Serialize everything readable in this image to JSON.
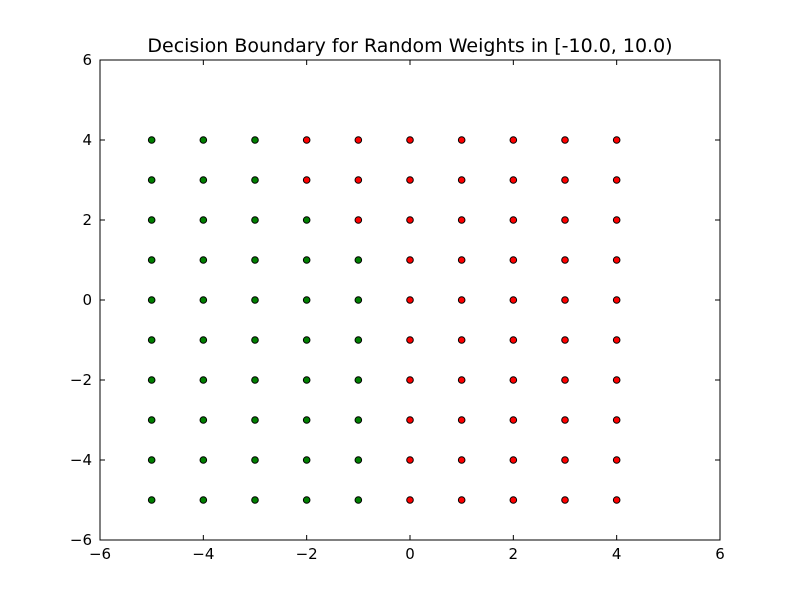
{
  "chart_data": {
    "type": "scatter",
    "title": "Decision Boundary for Random Weights in [-10.0, 10.0)",
    "xlabel": "",
    "ylabel": "",
    "xlim": [
      -6,
      6
    ],
    "ylim": [
      -6,
      6
    ],
    "x_ticks": [
      "−6",
      "−4",
      "−2",
      "0",
      "2",
      "4",
      "6"
    ],
    "y_ticks": [
      "−6",
      "−4",
      "−2",
      "0",
      "2",
      "4",
      "6"
    ],
    "grid": false,
    "legend": "none",
    "series": [
      {
        "color": "#008000",
        "points": [
          [
            -5,
            4
          ],
          [
            -4,
            4
          ],
          [
            -3,
            4
          ],
          [
            -5,
            3
          ],
          [
            -4,
            3
          ],
          [
            -3,
            3
          ],
          [
            -5,
            2
          ],
          [
            -4,
            2
          ],
          [
            -3,
            2
          ],
          [
            -2,
            2
          ],
          [
            -5,
            1
          ],
          [
            -4,
            1
          ],
          [
            -3,
            1
          ],
          [
            -2,
            1
          ],
          [
            -1,
            1
          ],
          [
            -5,
            0
          ],
          [
            -4,
            0
          ],
          [
            -3,
            0
          ],
          [
            -2,
            0
          ],
          [
            -1,
            0
          ],
          [
            -5,
            -1
          ],
          [
            -4,
            -1
          ],
          [
            -3,
            -1
          ],
          [
            -2,
            -1
          ],
          [
            -1,
            -1
          ],
          [
            -5,
            -2
          ],
          [
            -4,
            -2
          ],
          [
            -3,
            -2
          ],
          [
            -2,
            -2
          ],
          [
            -1,
            -2
          ],
          [
            -5,
            -3
          ],
          [
            -4,
            -3
          ],
          [
            -3,
            -3
          ],
          [
            -2,
            -3
          ],
          [
            -1,
            -3
          ],
          [
            -5,
            -4
          ],
          [
            -4,
            -4
          ],
          [
            -3,
            -4
          ],
          [
            -2,
            -4
          ],
          [
            -1,
            -4
          ],
          [
            -5,
            -5
          ],
          [
            -4,
            -5
          ],
          [
            -3,
            -5
          ],
          [
            -2,
            -5
          ],
          [
            -1,
            -5
          ]
        ]
      },
      {
        "color": "#ff0000",
        "points": [
          [
            -2,
            4
          ],
          [
            -1,
            4
          ],
          [
            0,
            4
          ],
          [
            1,
            4
          ],
          [
            2,
            4
          ],
          [
            3,
            4
          ],
          [
            4,
            4
          ],
          [
            -2,
            3
          ],
          [
            -1,
            3
          ],
          [
            0,
            3
          ],
          [
            1,
            3
          ],
          [
            2,
            3
          ],
          [
            3,
            3
          ],
          [
            4,
            3
          ],
          [
            -1,
            2
          ],
          [
            0,
            2
          ],
          [
            1,
            2
          ],
          [
            2,
            2
          ],
          [
            3,
            2
          ],
          [
            4,
            2
          ],
          [
            0,
            1
          ],
          [
            1,
            1
          ],
          [
            2,
            1
          ],
          [
            3,
            1
          ],
          [
            4,
            1
          ],
          [
            0,
            0
          ],
          [
            1,
            0
          ],
          [
            2,
            0
          ],
          [
            3,
            0
          ],
          [
            4,
            0
          ],
          [
            0,
            -1
          ],
          [
            1,
            -1
          ],
          [
            2,
            -1
          ],
          [
            3,
            -1
          ],
          [
            4,
            -1
          ],
          [
            0,
            -2
          ],
          [
            1,
            -2
          ],
          [
            2,
            -2
          ],
          [
            3,
            -2
          ],
          [
            4,
            -2
          ],
          [
            0,
            -3
          ],
          [
            1,
            -3
          ],
          [
            2,
            -3
          ],
          [
            3,
            -3
          ],
          [
            4,
            -3
          ],
          [
            0,
            -4
          ],
          [
            1,
            -4
          ],
          [
            2,
            -4
          ],
          [
            3,
            -4
          ],
          [
            4,
            -4
          ],
          [
            0,
            -5
          ],
          [
            1,
            -5
          ],
          [
            2,
            -5
          ],
          [
            3,
            -5
          ],
          [
            4,
            -5
          ]
        ]
      }
    ]
  }
}
